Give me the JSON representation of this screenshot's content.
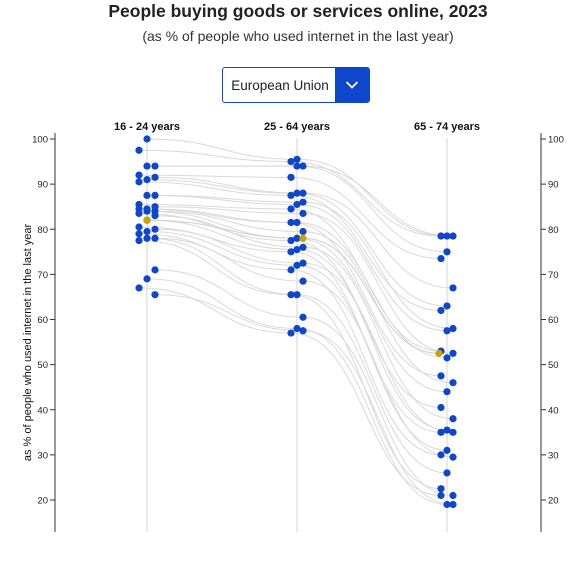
{
  "header": {
    "title": "People buying goods or services online, 2023",
    "subtitle": "(as % of people who used internet in the last year)"
  },
  "selector": {
    "value": "European Union",
    "icon": "chevron-down-icon"
  },
  "colors": {
    "point": "#0e47cb",
    "highlight": "#c9a400",
    "line": "#d9d9d9",
    "accent": "#0e47cb"
  },
  "chart_data": {
    "type": "scatter",
    "subtype": "slope-dot-plot",
    "categories": [
      "16 - 24 years",
      "25 - 64 years",
      "65 - 74 years"
    ],
    "ylabel": "as % of people who used internet in the last year",
    "ylim": [
      15,
      100
    ],
    "yticks": [
      20,
      30,
      40,
      50,
      60,
      70,
      80,
      90,
      100
    ],
    "grid": false,
    "highlight": {
      "name": "European Union",
      "values": [
        82,
        78,
        52.5
      ]
    },
    "series": [
      {
        "values": [
          100,
          95.5,
          78.5
        ]
      },
      {
        "values": [
          97.5,
          95,
          78.5
        ]
      },
      {
        "values": [
          94,
          94,
          78.5
        ]
      },
      {
        "values": [
          94,
          94,
          75
        ]
      },
      {
        "values": [
          92,
          91.5,
          73.5
        ]
      },
      {
        "values": [
          91.5,
          88,
          67
        ]
      },
      {
        "values": [
          91,
          88,
          63
        ]
      },
      {
        "values": [
          90.5,
          87.5,
          62
        ]
      },
      {
        "values": [
          87.5,
          86,
          58
        ]
      },
      {
        "values": [
          87.5,
          85.5,
          57.5
        ]
      },
      {
        "values": [
          85.5,
          84.5,
          53
        ]
      },
      {
        "values": [
          85,
          83.5,
          52.5
        ]
      },
      {
        "values": [
          84.5,
          81.5,
          51.5
        ]
      },
      {
        "values": [
          84.5,
          81.5,
          47.5
        ]
      },
      {
        "values": [
          84,
          79.5,
          46
        ]
      },
      {
        "values": [
          84,
          78,
          44
        ]
      },
      {
        "values": [
          83.5,
          77.5,
          40.5
        ]
      },
      {
        "values": [
          83,
          76,
          38
        ]
      },
      {
        "values": [
          82,
          75.5,
          35.5
        ]
      },
      {
        "values": [
          80.5,
          75,
          35
        ]
      },
      {
        "values": [
          80,
          72.5,
          35
        ]
      },
      {
        "values": [
          79.5,
          72,
          31
        ]
      },
      {
        "values": [
          79,
          71,
          30
        ]
      },
      {
        "values": [
          78,
          68.5,
          29.5
        ]
      },
      {
        "values": [
          78,
          65.5,
          26
        ]
      },
      {
        "values": [
          77.5,
          65.5,
          22.5
        ]
      },
      {
        "values": [
          71,
          60.5,
          21
        ]
      },
      {
        "values": [
          69,
          58,
          19
        ]
      },
      {
        "values": [
          67,
          57,
          21
        ]
      },
      {
        "values": [
          65.5,
          57.5,
          19
        ]
      }
    ]
  }
}
